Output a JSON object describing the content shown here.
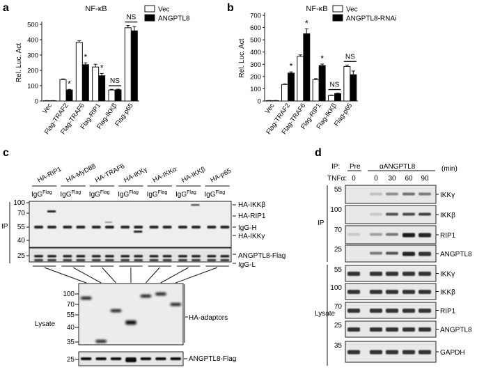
{
  "panels": {
    "a": "a",
    "b": "b",
    "c": "c",
    "d": "d"
  },
  "chart_data": [
    {
      "type": "bar",
      "title": "NF-κB",
      "ylabel": "Rel. Luc. Act",
      "ylim": [
        0,
        500
      ],
      "yticks": [
        "0",
        "100",
        "200",
        "300",
        "400",
        "500"
      ],
      "categories": [
        "Vec",
        "Flag-TRAF2",
        "Flag-TRAF6",
        "Flag-RIP1",
        "Flag-IKKβ",
        "Flag-p65"
      ],
      "series": [
        {
          "name": "Vec",
          "color": "#ffffff",
          "values": [
            2,
            140,
            383,
            222,
            72,
            478
          ],
          "errors": [
            1,
            4,
            10,
            18,
            4,
            15
          ]
        },
        {
          "name": "ANGPTL8",
          "color": "#000000",
          "values": [
            2,
            72,
            237,
            165,
            73,
            458
          ],
          "errors": [
            1,
            4,
            12,
            15,
            4,
            28
          ]
        }
      ],
      "annotations": [
        "",
        "*",
        "*",
        "*",
        "NS",
        "NS"
      ],
      "legend": "top-right"
    },
    {
      "type": "bar",
      "title": "NF-κB",
      "ylabel": "Rel. Luc. Act",
      "ylim": [
        0,
        700
      ],
      "yticks": [
        "0",
        "100",
        "200",
        "300",
        "400",
        "500",
        "600",
        "700"
      ],
      "categories": [
        "Vec",
        "Flag-TRAF2",
        "Flag-TRAF6",
        "Flag-RIP1",
        "Flag-IKKβ",
        "Flag-p65"
      ],
      "series": [
        {
          "name": "Vec",
          "color": "#ffffff",
          "values": [
            3,
            135,
            365,
            175,
            45,
            282
          ],
          "errors": [
            1,
            5,
            12,
            8,
            4,
            12
          ]
        },
        {
          "name": "ANGPTL8-RNAi",
          "color": "#000000",
          "values": [
            3,
            228,
            550,
            290,
            60,
            215
          ],
          "errors": [
            1,
            10,
            40,
            12,
            5,
            30
          ]
        }
      ],
      "annotations": [
        "",
        "*",
        "*",
        "*",
        "NS",
        "NS"
      ],
      "legend": "top-right"
    }
  ],
  "blot_c": {
    "lanes": [
      "HA-RIP1",
      "HA-MyD88",
      "HA-TRAF6",
      "HA-IKKγ",
      "HA-IKKα",
      "HA-IKKβ",
      "HA-p65"
    ],
    "igg": "IgG",
    "flag": "Flag",
    "ip": "IP",
    "lysate": "Lysate",
    "ip_markers": [
      "100",
      "70",
      "55",
      "40"
    ],
    "lower_markers": [
      "25"
    ],
    "lysate_markers": [
      "100",
      "70",
      "55",
      "40",
      "35"
    ],
    "lysate_lower_markers": [
      "25"
    ],
    "right_labels": [
      "HA-IKKβ",
      "HA-RIP1",
      "IgG-H",
      "HA-IKKγ"
    ],
    "flag_labels": [
      "ANGPTL8-Flag",
      "IgG-L"
    ],
    "lysate_label": "HA-adaptors",
    "lysate_lower_label": "ANGPTL8-Flag"
  },
  "blot_d": {
    "ip": "IP:",
    "pre": "Pre",
    "antibody": "αANGPTL8",
    "tnf": "TNFα:",
    "times": [
      "0",
      "0",
      "30",
      "60",
      "90"
    ],
    "unit": "(min)",
    "ip_side": "IP",
    "lysate_side": "Lysate",
    "ip_markers": [
      "55",
      "100",
      "70",
      "25"
    ],
    "ip_labels": [
      "IKKγ",
      "IKKβ",
      "RIP1",
      "ANGPTL8"
    ],
    "lys_markers": [
      "55",
      "100",
      "70",
      "25",
      "35"
    ],
    "lys_labels": [
      "IKKγ",
      "IKKβ",
      "RIP1",
      "ANGPTL8",
      "GAPDH"
    ]
  }
}
